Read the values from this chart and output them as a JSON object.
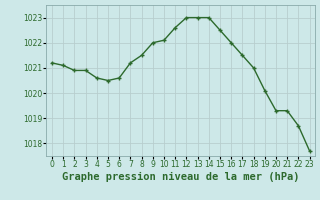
{
  "x": [
    0,
    1,
    2,
    3,
    4,
    5,
    6,
    7,
    8,
    9,
    10,
    11,
    12,
    13,
    14,
    15,
    16,
    17,
    18,
    19,
    20,
    21,
    22,
    23
  ],
  "y": [
    1021.2,
    1021.1,
    1020.9,
    1020.9,
    1020.6,
    1020.5,
    1020.6,
    1021.2,
    1021.5,
    1022.0,
    1022.1,
    1022.6,
    1023.0,
    1023.0,
    1023.0,
    1022.5,
    1022.0,
    1021.5,
    1021.0,
    1020.1,
    1019.3,
    1019.3,
    1018.7,
    1017.7
  ],
  "ylim": [
    1017.5,
    1023.5
  ],
  "yticks": [
    1018,
    1019,
    1020,
    1021,
    1022,
    1023
  ],
  "xticks": [
    0,
    1,
    2,
    3,
    4,
    5,
    6,
    7,
    8,
    9,
    10,
    11,
    12,
    13,
    14,
    15,
    16,
    17,
    18,
    19,
    20,
    21,
    22,
    23
  ],
  "xlabel": "Graphe pression niveau de la mer (hPa)",
  "line_color": "#2d6a2d",
  "marker": "+",
  "bg_color": "#cde8e8",
  "grid_color": "#b8cece",
  "tick_label_color": "#2d6a2d",
  "xlabel_color": "#2d6a2d",
  "tick_fontsize": 5.5,
  "xlabel_fontsize": 7.5,
  "spine_color": "#8aaaaa"
}
